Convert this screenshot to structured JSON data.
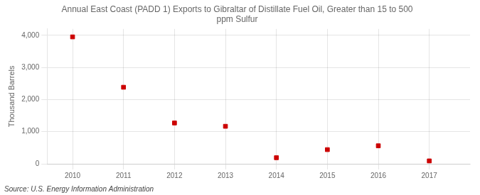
{
  "chart_data": {
    "type": "scatter",
    "title": "Annual East Coast (PADD 1) Exports to Gibraltar of Distillate Fuel Oil, Greater than 15 to 500\nppm Sulfur",
    "ylabel": "Thousand Barrels",
    "source": "Source: U.S. Energy Information Administration",
    "x": [
      2010,
      2011,
      2012,
      2013,
      2014,
      2015,
      2016,
      2017
    ],
    "values": [
      3952,
      2384,
      1271,
      1168,
      190,
      441,
      561,
      90
    ],
    "color": "#cc0000",
    "marker": "square",
    "xlim": [
      2009.5,
      2017.8
    ],
    "ylim": [
      0,
      4200
    ],
    "xticks": [
      2010,
      2011,
      2012,
      2013,
      2014,
      2015,
      2016,
      2017
    ],
    "yticks": [
      0,
      {
        "value": 1000,
        "label": "1,000"
      },
      {
        "value": 2000,
        "label": "2,000"
      },
      {
        "value": 3000,
        "label": "3,000"
      },
      {
        "value": 4000,
        "label": "4,000"
      }
    ],
    "grid": true
  }
}
